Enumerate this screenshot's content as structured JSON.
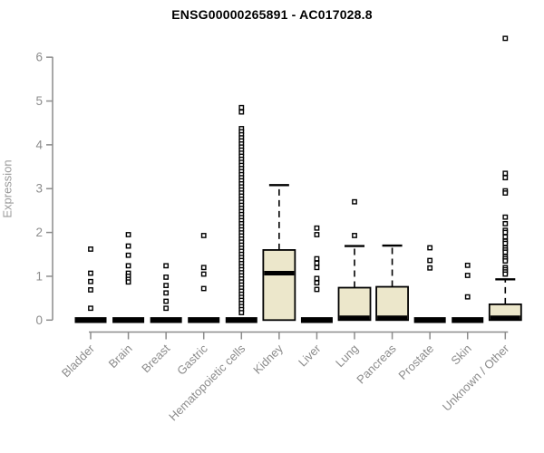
{
  "chart_data": {
    "type": "boxplot",
    "title": "ENSG00000265891 - AC017028.8",
    "ylabel": "Expression",
    "xlabel": "",
    "ylim": [
      0,
      6
    ],
    "yticks": [
      0,
      1,
      2,
      3,
      4,
      5,
      6
    ],
    "grid": false,
    "legend": "none",
    "categories": [
      "Bladder",
      "Brain",
      "Breast",
      "Gastric",
      "Hematopoietic cells",
      "Kidney",
      "Liver",
      "Lung",
      "Pancreas",
      "Prostate",
      "Skin",
      "Unknown / Other"
    ],
    "boxes": [
      {
        "category": "Bladder",
        "whisker_low": 0,
        "q1": 0,
        "median": 0,
        "q3": 0,
        "whisker_high": 0,
        "outliers": [
          1.62,
          1.07,
          0.88,
          0.69,
          0.27
        ]
      },
      {
        "category": "Brain",
        "whisker_low": 0,
        "q1": 0,
        "median": 0,
        "q3": 0,
        "whisker_high": 0,
        "outliers": [
          1.95,
          1.69,
          1.48,
          1.24,
          1.07,
          1.0,
          0.93,
          0.87
        ]
      },
      {
        "category": "Breast",
        "whisker_low": 0,
        "q1": 0,
        "median": 0,
        "q3": 0,
        "whisker_high": 0,
        "outliers": [
          1.24,
          0.98,
          0.79,
          0.62,
          0.43,
          0.27
        ]
      },
      {
        "category": "Gastric",
        "whisker_low": 0,
        "q1": 0,
        "median": 0,
        "q3": 0,
        "whisker_high": 0,
        "outliers": [
          1.93,
          1.2,
          1.05,
          0.72
        ]
      },
      {
        "category": "Hematopoietic cells",
        "whisker_low": 0,
        "q1": 0,
        "median": 0,
        "q3": 0,
        "whisker_high": 0,
        "outliers": [
          4.85,
          4.75,
          4.37,
          4.3,
          4.23,
          4.16,
          4.09,
          4.02,
          3.95,
          3.88,
          3.81,
          3.74,
          3.67,
          3.6,
          3.53,
          3.46,
          3.39,
          3.32,
          3.25,
          3.18,
          3.11,
          3.04,
          2.97,
          2.9,
          2.83,
          2.76,
          2.69,
          2.62,
          2.55,
          2.48,
          2.41,
          2.34,
          2.27,
          2.2,
          2.13,
          2.06,
          1.99,
          1.92,
          1.85,
          1.78,
          1.71,
          1.64,
          1.57,
          1.5,
          1.43,
          1.36,
          1.29,
          1.22,
          1.15,
          1.08,
          1.01,
          0.94,
          0.87,
          0.8,
          0.73,
          0.66,
          0.59,
          0.52,
          0.45,
          0.38,
          0.31,
          0.24,
          0.17
        ]
      },
      {
        "category": "Kidney",
        "whisker_low": 0,
        "q1": 0,
        "median": 1.07,
        "q3": 1.6,
        "whisker_high": 3.08,
        "outliers": []
      },
      {
        "category": "Liver",
        "whisker_low": 0,
        "q1": 0,
        "median": 0,
        "q3": 0,
        "whisker_high": 0,
        "outliers": [
          2.1,
          1.95,
          1.4,
          1.3,
          1.2,
          0.95,
          0.85,
          0.7
        ]
      },
      {
        "category": "Lung",
        "whisker_low": 0,
        "q1": 0,
        "median": 0,
        "q3": 0.74,
        "whisker_high": 1.69,
        "outliers": [
          2.7,
          1.93
        ]
      },
      {
        "category": "Pancreas",
        "whisker_low": 0,
        "q1": 0,
        "median": 0,
        "q3": 0.76,
        "whisker_high": 1.7,
        "outliers": []
      },
      {
        "category": "Prostate",
        "whisker_low": 0,
        "q1": 0,
        "median": 0,
        "q3": 0,
        "whisker_high": 0,
        "outliers": [
          1.65,
          1.36,
          1.19
        ]
      },
      {
        "category": "Skin",
        "whisker_low": 0,
        "q1": 0,
        "median": 0,
        "q3": 0,
        "whisker_high": 0,
        "outliers": [
          1.25,
          1.02,
          0.53
        ]
      },
      {
        "category": "Unknown / Other",
        "whisker_low": 0,
        "q1": 0,
        "median": 0,
        "q3": 0.36,
        "whisker_high": 0.93,
        "outliers": [
          6.43,
          3.35,
          3.25,
          2.95,
          2.9,
          2.35,
          2.2,
          2.05,
          2.0,
          1.9,
          1.8,
          1.75,
          1.65,
          1.6,
          1.55,
          1.45,
          1.4,
          1.35,
          1.2,
          1.15,
          1.1,
          1.05
        ]
      }
    ],
    "colors": {
      "box_fill": "#ECE7CB",
      "box_border": "#000000",
      "median": "#000000",
      "whisker": "#000000",
      "outlier_fill": "#ffffff",
      "outlier_border": "#000000",
      "axis": "#8c8c8c",
      "tick_label": "#8c8c8c",
      "title": "#000000"
    }
  }
}
